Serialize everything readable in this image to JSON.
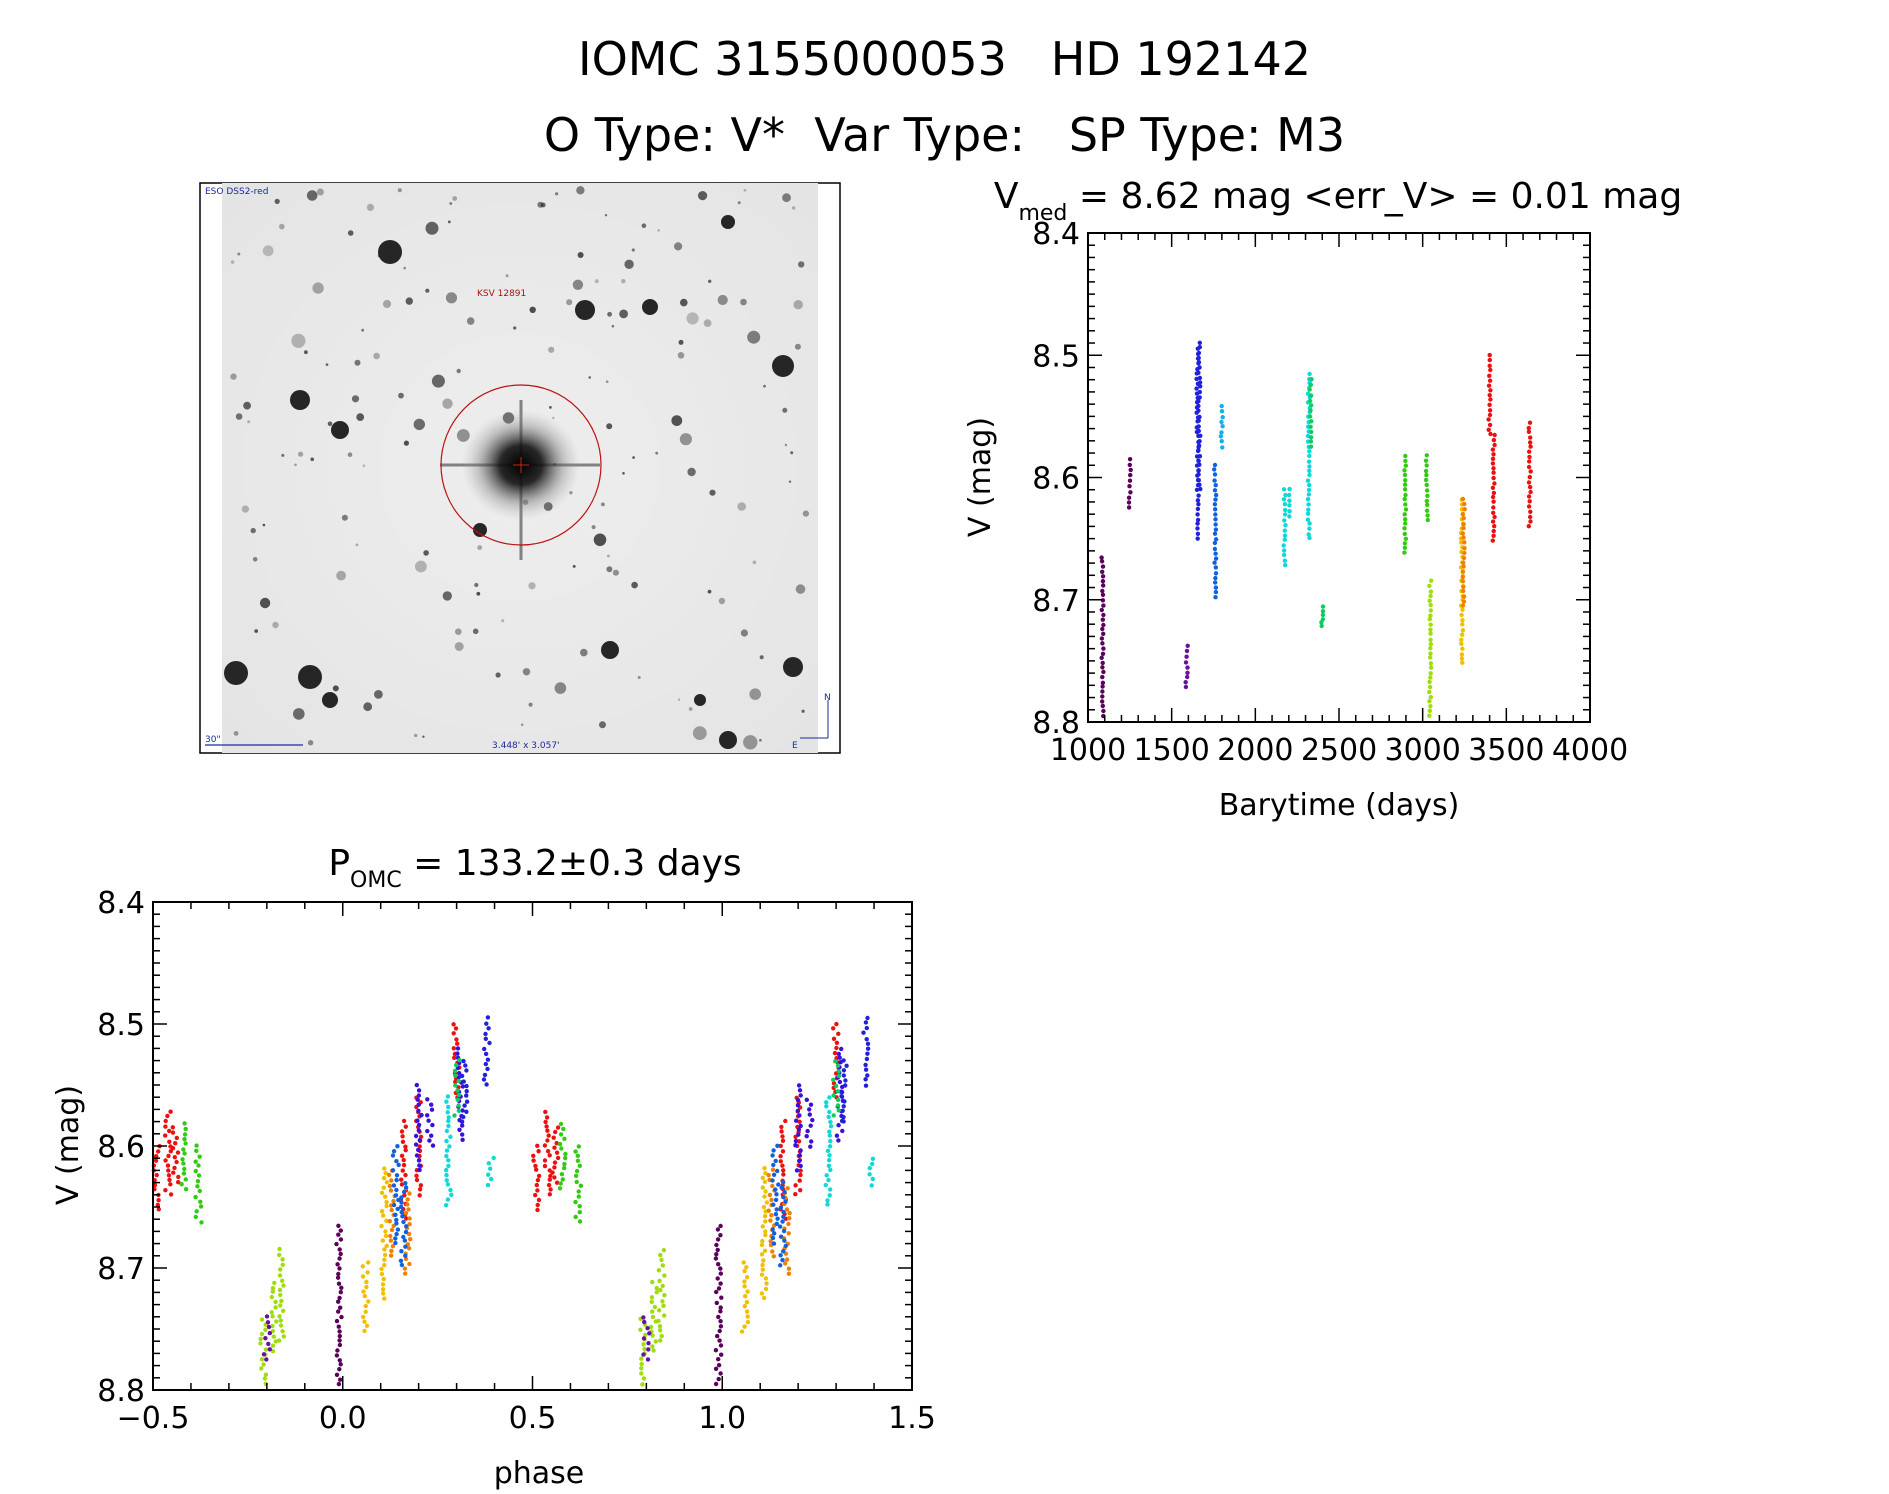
{
  "header": {
    "line1": "IOMC 3155000053   HD 192142",
    "line2": "O Type: V*  Var Type:   SP Type: M3"
  },
  "image_panel": {
    "survey_label": "ESO DSS2-red",
    "object_label": "KSV 12891",
    "scale_label": "30\"",
    "size_label": "3.448' x 3.057'",
    "compass_n": "N",
    "compass_e": "E"
  },
  "chart_data": [
    {
      "type": "scatter",
      "title": {
        "main": "V",
        "sub": "med",
        "rest": " = 8.62 mag <err_V> = 0.01 mag"
      },
      "xlabel": "Barytime (days)",
      "ylabel": "V (mag)",
      "xlim": [
        1000,
        4000
      ],
      "ylim": [
        8.4,
        8.8
      ],
      "y_inverted": true,
      "xticks": [
        "1000",
        "1500",
        "2000",
        "2500",
        "3000",
        "3500",
        "4000"
      ],
      "yticks": [
        "8.4",
        "8.5",
        "8.6",
        "8.7",
        "8.8"
      ],
      "series": [
        {
          "color": "#5a005a",
          "groups": [
            [
              1087,
              8.665,
              8.795
            ],
            [
              1250,
              8.585,
              8.625
            ]
          ]
        },
        {
          "color": "#6a10a0",
          "groups": [
            [
              1590,
              8.738,
              8.772
            ]
          ]
        },
        {
          "color": "#2020dd",
          "groups": [
            [
              1655,
              8.495,
              8.65
            ],
            [
              1665,
              8.49,
              8.61
            ]
          ]
        },
        {
          "color": "#1060e0",
          "groups": [
            [
              1760,
              8.59,
              8.698
            ]
          ]
        },
        {
          "color": "#10b0ee",
          "groups": [
            [
              1800,
              8.542,
              8.575
            ]
          ]
        },
        {
          "color": "#10d8d8",
          "groups": [
            [
              2175,
              8.61,
              8.672
            ],
            [
              2200,
              8.61,
              8.632
            ],
            [
              2320,
              8.515,
              8.65
            ]
          ]
        },
        {
          "color": "#10cc60",
          "groups": [
            [
              2330,
              8.52,
              8.575
            ],
            [
              2400,
              8.706,
              8.722
            ]
          ]
        },
        {
          "color": "#30cc10",
          "groups": [
            [
              2895,
              8.582,
              8.662
            ],
            [
              3025,
              8.582,
              8.635
            ]
          ]
        },
        {
          "color": "#a0dd10",
          "groups": [
            [
              3045,
              8.685,
              8.795
            ]
          ]
        },
        {
          "color": "#f0c000",
          "groups": [
            [
              3235,
              8.618,
              8.752
            ]
          ]
        },
        {
          "color": "#f08000",
          "groups": [
            [
              3245,
              8.618,
              8.705
            ]
          ]
        },
        {
          "color": "#ee1010",
          "groups": [
            [
              3400,
              8.5,
              8.565
            ],
            [
              3425,
              8.565,
              8.652
            ],
            [
              3640,
              8.555,
              8.64
            ]
          ]
        }
      ]
    },
    {
      "type": "scatter",
      "title": {
        "main": "P",
        "sub": "OMC",
        "rest": " = 133.2±0.3 days"
      },
      "xlabel": "phase",
      "ylabel": "V (mag)",
      "xlim": [
        -0.5,
        1.5
      ],
      "ylim": [
        8.4,
        8.8
      ],
      "y_inverted": true,
      "xticks": [
        "−0.5",
        "0.0",
        "0.5",
        "1.0",
        "1.5"
      ],
      "yticks": [
        "8.4",
        "8.5",
        "8.6",
        "8.7",
        "8.8"
      ],
      "series": [
        {
          "color": "#ee1010",
          "groups": [
            [
              -0.49,
              8.6,
              8.652
            ],
            [
              -0.46,
              8.572,
              8.64
            ],
            [
              -0.44,
              8.585,
              8.63
            ],
            [
              0.16,
              8.58,
              8.66
            ],
            [
              0.2,
              8.56,
              8.64
            ],
            [
              0.3,
              8.5,
              8.56
            ],
            [
              0.51,
              8.6,
              8.652
            ],
            [
              0.54,
              8.572,
              8.64
            ],
            [
              0.56,
              8.585,
              8.63
            ],
            [
              1.16,
              8.58,
              8.66
            ],
            [
              1.2,
              8.56,
              8.64
            ],
            [
              1.3,
              8.5,
              8.56
            ]
          ]
        },
        {
          "color": "#30cc10",
          "groups": [
            [
              -0.42,
              8.582,
              8.635
            ],
            [
              -0.38,
              8.6,
              8.662
            ],
            [
              0.58,
              8.582,
              8.635
            ],
            [
              0.62,
              8.6,
              8.662
            ]
          ]
        },
        {
          "color": "#a0dd10",
          "groups": [
            [
              -0.21,
              8.742,
              8.795
            ],
            [
              -0.18,
              8.712,
              8.768
            ],
            [
              -0.16,
              8.685,
              8.76
            ],
            [
              0.79,
              8.742,
              8.795
            ],
            [
              0.82,
              8.712,
              8.768
            ],
            [
              0.84,
              8.685,
              8.76
            ]
          ]
        },
        {
          "color": "#5a005a",
          "groups": [
            [
              -0.01,
              8.665,
              8.795
            ],
            [
              0.99,
              8.665,
              8.795
            ]
          ]
        },
        {
          "color": "#6a10a0",
          "groups": [
            [
              -0.2,
              8.74,
              8.775
            ],
            [
              0.8,
              8.74,
              8.775
            ]
          ]
        },
        {
          "color": "#f0c000",
          "groups": [
            [
              0.06,
              8.695,
              8.752
            ],
            [
              0.11,
              8.618,
              8.725
            ],
            [
              1.06,
              8.695,
              8.752
            ],
            [
              1.11,
              8.618,
              8.725
            ]
          ]
        },
        {
          "color": "#f08000",
          "groups": [
            [
              0.13,
              8.62,
              8.69
            ],
            [
              0.17,
              8.635,
              8.705
            ],
            [
              1.13,
              8.62,
              8.69
            ],
            [
              1.17,
              8.635,
              8.705
            ]
          ]
        },
        {
          "color": "#1060e0",
          "groups": [
            [
              0.14,
              8.6,
              8.68
            ],
            [
              0.16,
              8.63,
              8.698
            ],
            [
              1.14,
              8.6,
              8.68
            ],
            [
              1.16,
              8.63,
              8.698
            ]
          ]
        },
        {
          "color": "#3a10d8",
          "groups": [
            [
              0.2,
              8.55,
              8.62
            ],
            [
              0.23,
              8.562,
              8.6
            ],
            [
              0.31,
              8.52,
              8.595
            ],
            [
              1.2,
              8.55,
              8.62
            ],
            [
              1.23,
              8.562,
              8.6
            ],
            [
              1.31,
              8.52,
              8.595
            ]
          ]
        },
        {
          "color": "#2020dd",
          "groups": [
            [
              0.32,
              8.53,
              8.58
            ],
            [
              0.38,
              8.495,
              8.55
            ],
            [
              1.32,
              8.53,
              8.58
            ],
            [
              1.38,
              8.495,
              8.55
            ]
          ]
        },
        {
          "color": "#10d8d8",
          "groups": [
            [
              0.28,
              8.56,
              8.648
            ],
            [
              0.39,
              8.61,
              8.632
            ],
            [
              1.28,
              8.56,
              8.648
            ],
            [
              1.39,
              8.61,
              8.632
            ]
          ]
        },
        {
          "color": "#10cc60",
          "groups": [
            [
              0.3,
              8.53,
              8.575
            ],
            [
              1.3,
              8.53,
              8.575
            ]
          ]
        }
      ]
    }
  ]
}
